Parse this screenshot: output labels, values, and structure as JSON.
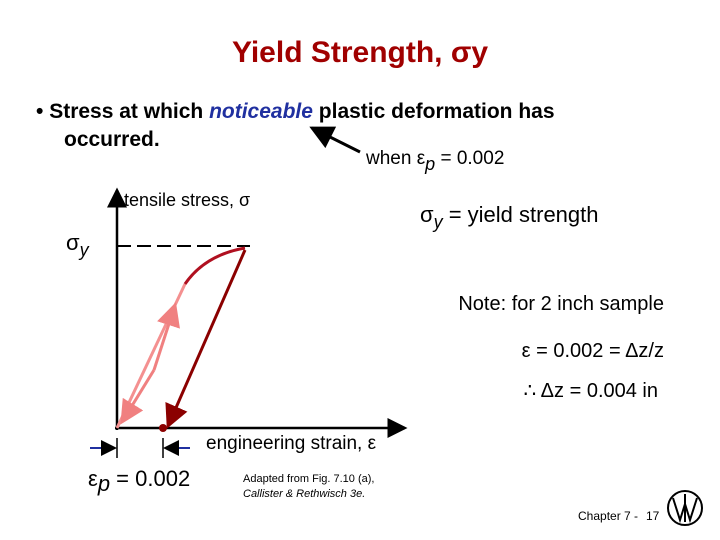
{
  "title": {
    "text": "Yield Strength, ",
    "symbol": "σ",
    "sub": "y"
  },
  "bullet": {
    "before": "Stress at which ",
    "emphasis": "noticeable",
    "after": " plastic deformation has",
    "line2": "occurred."
  },
  "annotation": {
    "before": "when ε",
    "sub": "p",
    "after": " = 0.002"
  },
  "diagram": {
    "y_axis_label": "tensile stress, σ",
    "yield_symbol": "σ",
    "yield_sub": "y",
    "x_axis_label": "engineering strain, ε",
    "offset_symbol": "ε",
    "offset_sub": "p",
    "offset_value": " = 0.002"
  },
  "definition": {
    "symbol": "σ",
    "sub": "y",
    "text": " = yield strength"
  },
  "note": {
    "line1": "Note: for 2 inch sample",
    "line2": "ε = 0.002 = Δz/z",
    "line3": "∴ Δz = 0.004 in"
  },
  "caption": {
    "line1": "Adapted from Fig. 7.10 (a),",
    "line2": "Callister & Rethwisch 3e."
  },
  "footer": {
    "chapter": "Chapter 7 -",
    "page": "17"
  }
}
